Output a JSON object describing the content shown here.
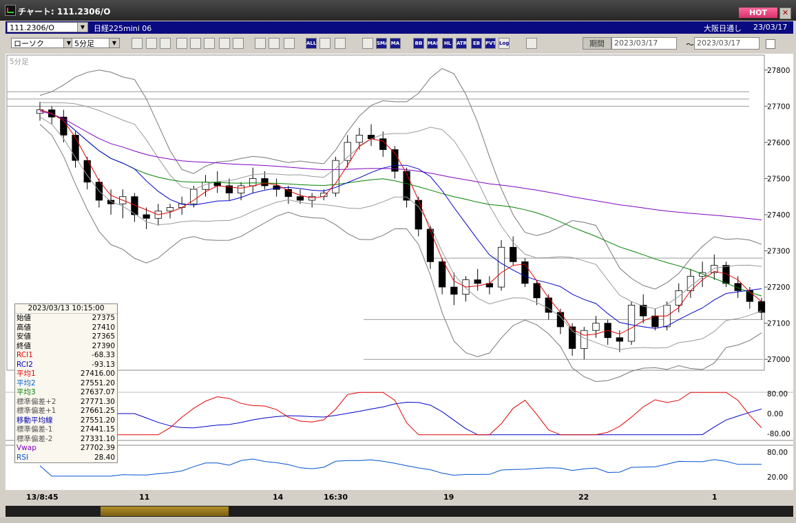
{
  "window": {
    "title": "チャート: 111.2306/O",
    "hot_label": "HOT",
    "close_glyph": "✕",
    "icon": "chart-app-icon"
  },
  "row1": {
    "symbol": "111.2306/O",
    "name": "日経225mini 06",
    "market": "大阪日通し",
    "date": "23/03/17"
  },
  "row2": {
    "chart_type": "ローソク",
    "interval": "5分足",
    "buttons": [
      "zoom",
      "cursor",
      "a",
      "b",
      "c",
      "d",
      "line",
      "arrow",
      "undo",
      "nav1",
      "nav2",
      "ALL",
      "set",
      "pen",
      "color",
      "SMA",
      "MA",
      "BB",
      "MAE",
      "HL",
      "ATR",
      "EB",
      "PVT",
      "Log",
      "exp"
    ],
    "period_label": "期間",
    "date_from": "2023/03/17",
    "date_to": "2023/03/17",
    "tilde": "〜"
  },
  "chart": {
    "interval_label": "5分足",
    "colors": {
      "up": "#ffffff",
      "down": "#000000",
      "avg1": "#e00000",
      "avg2": "#0000cc",
      "avg3": "#008000",
      "vwap": "#8000c0",
      "rsi": "#0050d0",
      "bands": "#777777"
    }
  },
  "info": {
    "header": "2023/03/13  10:15:00",
    "rows": [
      {
        "k": "始値",
        "v": "27375",
        "c": "#000"
      },
      {
        "k": "高値",
        "v": "27410",
        "c": "#000"
      },
      {
        "k": "安値",
        "v": "27365",
        "c": "#000"
      },
      {
        "k": "終値",
        "v": "27390",
        "c": "#000"
      },
      {
        "k": "RCI1",
        "v": "-68.33",
        "c": "#e00000"
      },
      {
        "k": "RCI2",
        "v": "-93.13",
        "c": "#0000cc"
      },
      {
        "k": "平均1",
        "v": "27416.00",
        "c": "#e00000"
      },
      {
        "k": "平均2",
        "v": "27551.20",
        "c": "#0060d0"
      },
      {
        "k": "平均3",
        "v": "27637.07",
        "c": "#008000"
      },
      {
        "k": "標準偏差+2",
        "v": "27771.30",
        "c": "#555"
      },
      {
        "k": "標準偏差+1",
        "v": "27661.25",
        "c": "#555"
      },
      {
        "k": "移動平均線",
        "v": "27551.20",
        "c": "#0000aa"
      },
      {
        "k": "標準偏差-1",
        "v": "27441.15",
        "c": "#555"
      },
      {
        "k": "標準偏差-2",
        "v": "27331.10",
        "c": "#555"
      },
      {
        "k": "Vwap",
        "v": "27702.39",
        "c": "#8000c0"
      },
      {
        "k": "RSI",
        "v": "28.40",
        "c": "#0050d0"
      }
    ]
  },
  "chart_data": {
    "type": "candlestick",
    "price_axis": {
      "ticks": [
        27000,
        27100,
        27200,
        27300,
        27400,
        27500,
        27600,
        27700,
        27800
      ],
      "range": [
        26970,
        27830
      ]
    },
    "rci_axis": {
      "ticks": [
        "80.00",
        "0.00",
        "-80.00"
      ]
    },
    "rsi_axis": {
      "ticks": [
        "80.00",
        "20.00"
      ]
    },
    "x_labels": [
      "13/8:45",
      "11",
      "14",
      "16:30",
      "19",
      "22",
      "1"
    ],
    "candles": [
      [
        27680,
        27712,
        27660,
        27690
      ],
      [
        27690,
        27700,
        27650,
        27670
      ],
      [
        27670,
        27690,
        27600,
        27620
      ],
      [
        27620,
        27630,
        27530,
        27550
      ],
      [
        27550,
        27560,
        27470,
        27490
      ],
      [
        27490,
        27500,
        27420,
        27440
      ],
      [
        27440,
        27470,
        27400,
        27430
      ],
      [
        27430,
        27470,
        27390,
        27450
      ],
      [
        27450,
        27460,
        27380,
        27400
      ],
      [
        27400,
        27420,
        27360,
        27390
      ],
      [
        27390,
        27430,
        27370,
        27410
      ],
      [
        27410,
        27430,
        27390,
        27420
      ],
      [
        27420,
        27450,
        27400,
        27430
      ],
      [
        27430,
        27480,
        27420,
        27470
      ],
      [
        27470,
        27510,
        27450,
        27490
      ],
      [
        27490,
        27520,
        27460,
        27480
      ],
      [
        27480,
        27500,
        27440,
        27460
      ],
      [
        27460,
        27490,
        27440,
        27480
      ],
      [
        27480,
        27530,
        27460,
        27500
      ],
      [
        27500,
        27520,
        27470,
        27480
      ],
      [
        27480,
        27500,
        27450,
        27470
      ],
      [
        27470,
        27480,
        27430,
        27450
      ],
      [
        27450,
        27470,
        27430,
        27440
      ],
      [
        27440,
        27460,
        27420,
        27450
      ],
      [
        27450,
        27470,
        27440,
        27460
      ],
      [
        27460,
        27560,
        27450,
        27550
      ],
      [
        27550,
        27620,
        27530,
        27600
      ],
      [
        27600,
        27640,
        27580,
        27620
      ],
      [
        27620,
        27650,
        27590,
        27610
      ],
      [
        27610,
        27630,
        27560,
        27580
      ],
      [
        27580,
        27590,
        27500,
        27520
      ],
      [
        27520,
        27530,
        27420,
        27440
      ],
      [
        27440,
        27450,
        27340,
        27360
      ],
      [
        27360,
        27370,
        27250,
        27270
      ],
      [
        27270,
        27280,
        27180,
        27200
      ],
      [
        27200,
        27240,
        27150,
        27180
      ],
      [
        27180,
        27230,
        27160,
        27220
      ],
      [
        27220,
        27250,
        27190,
        27210
      ],
      [
        27210,
        27230,
        27180,
        27200
      ],
      [
        27200,
        27330,
        27190,
        27310
      ],
      [
        27310,
        27340,
        27260,
        27270
      ],
      [
        27270,
        27280,
        27200,
        27210
      ],
      [
        27210,
        27220,
        27150,
        27170
      ],
      [
        27170,
        27180,
        27110,
        27130
      ],
      [
        27130,
        27140,
        27070,
        27090
      ],
      [
        27090,
        27100,
        27010,
        27030
      ],
      [
        27030,
        27090,
        27000,
        27080
      ],
      [
        27080,
        27120,
        27060,
        27100
      ],
      [
        27100,
        27110,
        27040,
        27060
      ],
      [
        27060,
        27080,
        27020,
        27050
      ],
      [
        27050,
        27160,
        27040,
        27150
      ],
      [
        27150,
        27180,
        27100,
        27120
      ],
      [
        27120,
        27140,
        27080,
        27090
      ],
      [
        27090,
        27160,
        27080,
        27150
      ],
      [
        27150,
        27210,
        27130,
        27190
      ],
      [
        27190,
        27250,
        27170,
        27230
      ],
      [
        27230,
        27270,
        27200,
        27240
      ],
      [
        27240,
        27290,
        27220,
        27260
      ],
      [
        27260,
        27270,
        27200,
        27210
      ],
      [
        27210,
        27230,
        27170,
        27190
      ],
      [
        27190,
        27200,
        27140,
        27160
      ],
      [
        27160,
        27170,
        27110,
        27130
      ]
    ],
    "hlines": [
      27740,
      27720,
      27700,
      27280,
      27110,
      27000
    ]
  }
}
